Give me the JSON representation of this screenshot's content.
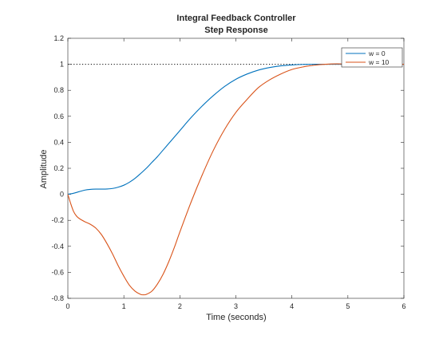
{
  "chart_data": {
    "type": "line",
    "title": "Integral Feedback Controller",
    "subtitle": "Step Response",
    "xlabel": "Time (seconds)",
    "ylabel": "Amplitude",
    "xlim": [
      0,
      6
    ],
    "ylim": [
      -0.8,
      1.2
    ],
    "xticks": [
      "0",
      "1",
      "2",
      "3",
      "4",
      "5",
      "6"
    ],
    "yticks": [
      "-0.8",
      "-0.6",
      "-0.4",
      "-0.2",
      "0",
      "0.2",
      "0.4",
      "0.6",
      "0.8",
      "1",
      "1.2"
    ],
    "grid": false,
    "legend": "top-right",
    "reference_line": {
      "y": 1,
      "style": "dotted",
      "color": "#000000"
    },
    "series": [
      {
        "name": "w = 0",
        "color": "#0072BD",
        "x": [
          0,
          0.1,
          0.2,
          0.3,
          0.4,
          0.5,
          0.6,
          0.7,
          0.8,
          0.9,
          1.0,
          1.1,
          1.2,
          1.3,
          1.4,
          1.5,
          1.6,
          1.7,
          1.8,
          1.9,
          2.0,
          2.2,
          2.4,
          2.6,
          2.8,
          3.0,
          3.2,
          3.4,
          3.6,
          3.8,
          4.0,
          4.2,
          4.4,
          4.6,
          4.8,
          5.0,
          5.5,
          6.0
        ],
        "y": [
          0,
          0.008,
          0.02,
          0.032,
          0.038,
          0.04,
          0.04,
          0.041,
          0.045,
          0.055,
          0.07,
          0.093,
          0.123,
          0.16,
          0.2,
          0.245,
          0.29,
          0.34,
          0.39,
          0.44,
          0.49,
          0.59,
          0.68,
          0.76,
          0.83,
          0.885,
          0.925,
          0.955,
          0.975,
          0.988,
          0.995,
          0.999,
          1.0,
          1.0,
          1.0,
          1.0,
          1.0,
          1.0
        ]
      },
      {
        "name": "w = 10",
        "color": "#D95319",
        "x": [
          0,
          0.05,
          0.1,
          0.15,
          0.2,
          0.3,
          0.4,
          0.5,
          0.6,
          0.7,
          0.8,
          0.9,
          1.0,
          1.1,
          1.2,
          1.3,
          1.35,
          1.4,
          1.5,
          1.6,
          1.7,
          1.8,
          1.9,
          2.0,
          2.2,
          2.4,
          2.6,
          2.8,
          3.0,
          3.2,
          3.4,
          3.6,
          3.8,
          4.0,
          4.2,
          4.4,
          4.6,
          4.8,
          5.0,
          5.5,
          6.0
        ],
        "y": [
          0,
          -0.07,
          -0.13,
          -0.165,
          -0.185,
          -0.21,
          -0.23,
          -0.26,
          -0.31,
          -0.38,
          -0.46,
          -0.55,
          -0.63,
          -0.7,
          -0.745,
          -0.77,
          -0.773,
          -0.77,
          -0.745,
          -0.69,
          -0.615,
          -0.52,
          -0.41,
          -0.29,
          -0.06,
          0.15,
          0.34,
          0.5,
          0.63,
          0.73,
          0.82,
          0.88,
          0.925,
          0.96,
          0.98,
          0.993,
          1.0,
          1.003,
          1.002,
          1.0,
          1.0
        ]
      }
    ]
  }
}
